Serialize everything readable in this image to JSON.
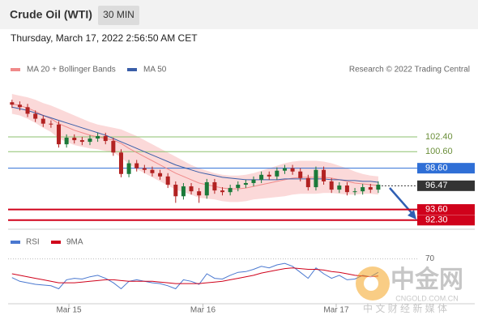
{
  "header": {
    "title": "Crude Oil (WTI)",
    "timeframe": "30 MIN",
    "timestamp": "Thursday, March 17, 2022 2:56:50 AM CET"
  },
  "watermark": {
    "brand": "中金网",
    "site": "CNGOLD.COM.CN",
    "slogan": "中 文 财 经 新 媒 体"
  },
  "chart_data": [
    {
      "type": "candlestick",
      "copyright": "Research © 2022 Trading Central",
      "up_color": "#1b7a3a",
      "down_color": "#b22222",
      "xlim": [
        -0.5,
        52
      ],
      "xticks": [
        {
          "value": 7.3,
          "label": "Mar 15"
        },
        {
          "value": 24.5,
          "label": "Mar 16"
        },
        {
          "value": 41.6,
          "label": "Mar 17"
        }
      ],
      "ylim": [
        91.2,
        107.7
      ],
      "open": [
        106.6,
        106.3,
        106.0,
        105.2,
        104.6,
        104.0,
        103.9,
        101.5,
        102.3,
        102.0,
        101.8,
        102.2,
        102.5,
        101.9,
        100.5,
        97.9,
        99.2,
        98.6,
        98.4,
        98.0,
        97.6,
        96.6,
        95.2,
        96.4,
        95.8,
        95.3,
        96.9,
        95.9,
        95.7,
        96.2,
        96.6,
        96.8,
        97.2,
        97.8,
        97.6,
        98.3,
        98.6,
        98.2,
        97.4,
        96.3,
        98.4,
        97.0,
        96.0,
        96.5,
        95.7,
        95.8,
        96.3,
        96.0
      ],
      "high": [
        106.9,
        106.7,
        106.4,
        105.6,
        105.0,
        104.4,
        104.3,
        102.7,
        102.7,
        102.4,
        102.6,
        102.9,
        102.9,
        102.3,
        100.9,
        99.6,
        99.6,
        99.0,
        98.8,
        98.4,
        98.0,
        97.0,
        96.8,
        96.8,
        96.2,
        97.3,
        97.3,
        96.3,
        96.6,
        97.0,
        97.2,
        97.6,
        98.2,
        98.2,
        98.7,
        99.0,
        99.0,
        98.6,
        97.8,
        98.8,
        98.8,
        97.4,
        96.9,
        96.9,
        96.2,
        96.7,
        96.7,
        97.0
      ],
      "low": [
        105.9,
        105.6,
        104.8,
        104.2,
        103.6,
        103.5,
        101.1,
        101.1,
        101.6,
        101.4,
        101.4,
        101.8,
        101.5,
        100.1,
        97.5,
        97.5,
        98.2,
        98.0,
        97.6,
        97.2,
        96.2,
        94.4,
        94.8,
        95.4,
        94.4,
        94.9,
        95.5,
        95.3,
        95.3,
        95.8,
        96.2,
        96.4,
        96.8,
        97.2,
        97.2,
        97.9,
        97.8,
        97.0,
        95.9,
        95.9,
        96.6,
        95.6,
        95.6,
        95.3,
        95.3,
        95.4,
        95.6,
        95.6
      ],
      "close": [
        106.3,
        106.0,
        105.2,
        104.6,
        104.0,
        103.9,
        101.5,
        102.3,
        102.0,
        101.8,
        102.2,
        102.5,
        101.9,
        100.5,
        97.9,
        99.2,
        98.6,
        98.4,
        98.0,
        97.6,
        96.6,
        95.2,
        96.4,
        95.8,
        95.3,
        96.9,
        95.9,
        95.7,
        96.2,
        96.6,
        96.8,
        97.2,
        97.8,
        97.6,
        98.3,
        98.6,
        98.2,
        97.4,
        96.3,
        98.4,
        97.0,
        96.0,
        96.5,
        95.7,
        95.8,
        96.3,
        96.0,
        96.6
      ],
      "series": [
        {
          "name": "MA 20 + Bollinger Bands",
          "color": "#f08a8a",
          "band_color": "#fbd9d9",
          "values": [
            106.4,
            106.2,
            105.9,
            105.5,
            105.0,
            104.6,
            104.0,
            103.6,
            103.2,
            102.9,
            102.6,
            102.4,
            102.2,
            102.0,
            101.6,
            101.0,
            100.5,
            100.0,
            99.5,
            99.0,
            98.5,
            98.0,
            97.6,
            97.2,
            96.8,
            96.6,
            96.4,
            96.2,
            96.1,
            96.1,
            96.2,
            96.4,
            96.6,
            96.8,
            97.0,
            97.2,
            97.4,
            97.5,
            97.5,
            97.5,
            97.5,
            97.4,
            97.2,
            97.0,
            96.8,
            96.7,
            96.6,
            96.5
          ],
          "upper": [
            107.6,
            107.4,
            107.2,
            106.9,
            106.5,
            106.2,
            105.8,
            105.4,
            105.0,
            104.6,
            104.2,
            103.9,
            103.7,
            103.5,
            103.3,
            102.9,
            102.5,
            102.0,
            101.5,
            101.0,
            100.5,
            100.0,
            99.5,
            99.0,
            98.6,
            98.3,
            98.0,
            97.8,
            97.7,
            97.7,
            97.8,
            98.0,
            98.3,
            98.6,
            98.9,
            99.2,
            99.4,
            99.5,
            99.5,
            99.5,
            99.4,
            99.2,
            98.9,
            98.6,
            98.2,
            97.9,
            97.7,
            97.6
          ],
          "lower": [
            105.2,
            105.0,
            104.6,
            104.1,
            103.5,
            103.0,
            102.2,
            101.8,
            101.4,
            101.2,
            101.0,
            100.9,
            100.7,
            100.5,
            99.9,
            99.1,
            98.5,
            98.0,
            97.5,
            97.0,
            96.5,
            96.0,
            95.7,
            95.4,
            95.0,
            94.9,
            94.8,
            94.6,
            94.5,
            94.5,
            94.6,
            94.8,
            94.9,
            95.0,
            95.1,
            95.2,
            95.4,
            95.5,
            95.5,
            95.5,
            95.6,
            95.6,
            95.5,
            95.4,
            95.4,
            95.5,
            95.5,
            95.4
          ]
        },
        {
          "name": "MA 50",
          "color": "#3a5ea8",
          "values": [
            106.0,
            105.8,
            105.6,
            105.3,
            105.0,
            104.7,
            104.4,
            104.1,
            103.8,
            103.5,
            103.2,
            102.9,
            102.6,
            102.2,
            101.8,
            101.4,
            101.0,
            100.6,
            100.2,
            99.8,
            99.4,
            99.0,
            98.7,
            98.4,
            98.1,
            97.9,
            97.7,
            97.5,
            97.4,
            97.3,
            97.2,
            97.2,
            97.2,
            97.2,
            97.2,
            97.3,
            97.3,
            97.3,
            97.3,
            97.3,
            97.3,
            97.2,
            97.2,
            97.1,
            97.1,
            97.0,
            97.0,
            96.9
          ]
        }
      ],
      "levels": [
        {
          "value": 102.4,
          "label": "102.40",
          "color": "#8dc26f",
          "boxed": false,
          "width": 1
        },
        {
          "value": 100.6,
          "label": "100.60",
          "color": "#8dc26f",
          "boxed": false,
          "width": 1
        },
        {
          "value": 98.6,
          "label": "98.60",
          "color": "#2f6fd6",
          "boxed": true,
          "width": 1
        },
        {
          "value": 96.47,
          "label": "96.47",
          "color": "#333333",
          "boxed": true,
          "width": 1,
          "dashed": true
        },
        {
          "value": 93.6,
          "label": "93.60",
          "color": "#d0021b",
          "boxed": true,
          "width": 2
        },
        {
          "value": 92.3,
          "label": "92.30",
          "color": "#d0021b",
          "boxed": true,
          "width": 2
        }
      ]
    },
    {
      "type": "line",
      "xlim": [
        -0.5,
        52
      ],
      "ylim": [
        10,
        102
      ],
      "yticks": [
        70
      ],
      "series": [
        {
          "name": "RSI",
          "color": "#4a78d0",
          "values": [
            45,
            40,
            38,
            36,
            35,
            34,
            30,
            42,
            44,
            43,
            46,
            48,
            44,
            38,
            30,
            40,
            42,
            40,
            38,
            37,
            34,
            30,
            42,
            40,
            36,
            50,
            44,
            43,
            48,
            52,
            53,
            56,
            60,
            58,
            62,
            64,
            60,
            52,
            44,
            58,
            50,
            44,
            48,
            42,
            43,
            48,
            46,
            52
          ]
        },
        {
          "name": "9MA",
          "color": "#d0021b",
          "values": [
            50,
            48,
            46,
            44,
            42,
            40,
            38,
            38,
            38,
            39,
            40,
            41,
            42,
            42,
            41,
            40,
            40,
            40,
            40,
            39,
            38,
            37,
            37,
            37,
            37,
            38,
            39,
            40,
            42,
            44,
            46,
            48,
            51,
            53,
            55,
            57,
            58,
            57,
            56,
            56,
            55,
            53,
            52,
            50,
            48,
            47,
            46,
            47
          ]
        }
      ]
    }
  ]
}
